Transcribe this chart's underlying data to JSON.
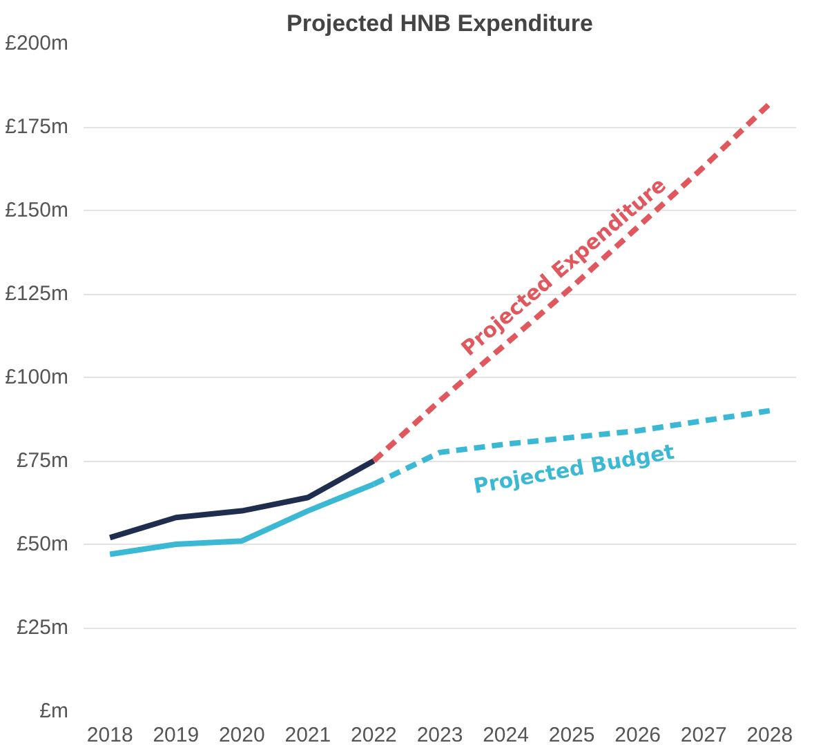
{
  "chart_data": {
    "type": "line",
    "title": "Projected HNB Expenditure",
    "categories": [
      "2018",
      "2019",
      "2020",
      "2021",
      "2022",
      "2023",
      "2024",
      "2025",
      "2026",
      "2027",
      "2028"
    ],
    "series": [
      {
        "color": "#1f2d4e",
        "line_style": "solid",
        "values": [
          52,
          58,
          60,
          64,
          75,
          null,
          null,
          null,
          null,
          null,
          null
        ]
      },
      {
        "color": "#3bb8d4",
        "line_style": "solid",
        "values": [
          47,
          50,
          51,
          60,
          68,
          null,
          null,
          null,
          null,
          null,
          null
        ]
      },
      {
        "name": "Projected Expenditure",
        "color": "#e0575e",
        "line_style": "dashed",
        "values": [
          null,
          null,
          null,
          null,
          75,
          93,
          110,
          127,
          145,
          163,
          182
        ]
      },
      {
        "name": "Projected Budget",
        "color": "#3bb8d4",
        "line_style": "dashed",
        "values": [
          null,
          null,
          null,
          null,
          68,
          77.5,
          80,
          82,
          84,
          87,
          90
        ]
      }
    ],
    "ylim": [
      0,
      200
    ],
    "yticks": [
      {
        "value": 0,
        "label": "£m"
      },
      {
        "value": 25,
        "label": "£25m"
      },
      {
        "value": 50,
        "label": "£50m"
      },
      {
        "value": 75,
        "label": "£75m"
      },
      {
        "value": 100,
        "label": "£100m"
      },
      {
        "value": 125,
        "label": "£125m"
      },
      {
        "value": 150,
        "label": "£150m"
      },
      {
        "value": 175,
        "label": "£175m"
      },
      {
        "value": 200,
        "label": "£200m"
      }
    ],
    "grid": "y",
    "marker": "none"
  }
}
